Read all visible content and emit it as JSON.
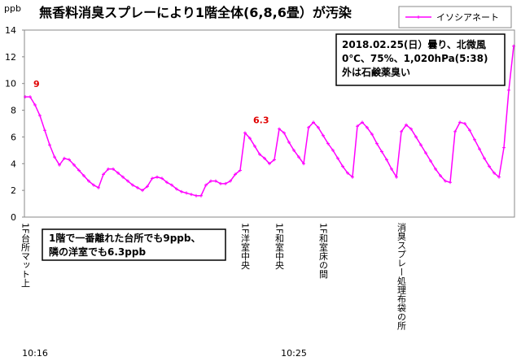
{
  "chart_data": {
    "type": "line",
    "title": "無香料消臭スプレーにより1階全体(6,8,6畳）が汚染",
    "ylabel": "ppb",
    "ylim": [
      0,
      14
    ],
    "yticks": [
      0,
      2,
      4,
      6,
      8,
      10,
      12,
      14
    ],
    "grid": false,
    "legend": "top-right",
    "categories": [
      "1F台所マット上",
      null,
      null,
      null,
      null,
      null,
      null,
      null,
      null,
      null,
      null,
      null,
      null,
      null,
      null,
      null,
      null,
      null,
      null,
      null,
      null,
      null,
      null,
      null,
      null,
      null,
      null,
      null,
      null,
      null,
      null,
      null,
      null,
      null,
      null,
      null,
      null,
      null,
      null,
      null,
      null,
      null,
      null,
      null,
      null,
      "1F洋室中央",
      null,
      null,
      null,
      null,
      null,
      null,
      "1F和室中央",
      null,
      null,
      null,
      null,
      null,
      null,
      null,
      null,
      "1F和室床の間",
      null,
      null,
      null,
      null,
      null,
      null,
      null,
      null,
      null,
      null,
      null,
      null,
      null,
      null,
      null,
      "消臭スプレー処理布袋の所",
      null,
      null,
      null,
      null,
      null,
      null,
      null,
      null,
      null,
      null,
      null,
      null,
      null,
      null,
      null,
      null,
      null,
      null,
      null,
      null,
      null,
      null,
      null
    ],
    "time_labels": [
      null,
      null,
      "10:16",
      null,
      null,
      null,
      null,
      null,
      null,
      null,
      null,
      null,
      null,
      null,
      null,
      null,
      null,
      null,
      null,
      null,
      null,
      null,
      null,
      null,
      null,
      null,
      null,
      null,
      null,
      null,
      null,
      null,
      null,
      null,
      null,
      null,
      null,
      null,
      null,
      null,
      null,
      null,
      null,
      null,
      null,
      null,
      null,
      null,
      null,
      null,
      null,
      null,
      null,
      null,
      null,
      "10:25",
      null,
      null,
      null,
      null,
      null,
      null,
      null,
      null,
      null,
      null,
      null,
      null,
      null,
      null,
      null,
      null,
      null,
      null,
      null,
      null,
      null,
      null,
      null,
      null,
      null,
      null,
      null,
      null,
      null,
      null,
      null,
      null,
      null,
      null,
      null,
      null,
      null,
      null,
      null,
      null,
      null,
      null,
      null,
      null,
      null
    ],
    "series": [
      {
        "name": "イソシアネート",
        "color": "#ff00ff",
        "values": [
          9.0,
          9.0,
          8.4,
          7.6,
          6.5,
          5.4,
          4.5,
          3.9,
          4.4,
          4.3,
          3.9,
          3.5,
          3.1,
          2.7,
          2.4,
          2.2,
          3.2,
          3.6,
          3.6,
          3.3,
          3.0,
          2.7,
          2.4,
          2.2,
          2.0,
          2.3,
          2.9,
          3.0,
          2.9,
          2.6,
          2.4,
          2.1,
          1.9,
          1.8,
          1.7,
          1.6,
          1.6,
          2.4,
          2.7,
          2.7,
          2.5,
          2.5,
          2.7,
          3.2,
          3.5,
          6.3,
          5.9,
          5.3,
          4.7,
          4.4,
          4.0,
          4.3,
          6.6,
          6.3,
          5.6,
          5.0,
          4.5,
          4.0,
          6.7,
          7.1,
          6.7,
          6.1,
          5.5,
          5.0,
          4.4,
          3.8,
          3.3,
          3.0,
          6.8,
          7.1,
          6.7,
          6.2,
          5.5,
          4.9,
          4.3,
          3.6,
          3.0,
          6.4,
          6.9,
          6.6,
          6.0,
          5.4,
          4.8,
          4.2,
          3.6,
          3.1,
          2.7,
          2.6,
          6.4,
          7.1,
          7.0,
          6.5,
          5.8,
          5.1,
          4.4,
          3.8,
          3.3,
          3.0,
          5.2,
          9.5,
          12.8
        ],
        "value_labels": [
          "9",
          null,
          null,
          null,
          null,
          null,
          null,
          null,
          null,
          null,
          null,
          null,
          null,
          null,
          null,
          null,
          null,
          null,
          null,
          null,
          null,
          null,
          null,
          null,
          null,
          null,
          null,
          null,
          null,
          null,
          null,
          null,
          null,
          null,
          null,
          null,
          null,
          null,
          null,
          null,
          null,
          null,
          null,
          null,
          null,
          "6.3",
          null,
          null,
          null,
          null,
          null,
          null,
          null,
          null,
          null,
          null,
          null,
          null,
          null,
          null,
          null,
          null,
          null,
          null,
          null,
          null,
          null,
          null,
          null,
          null,
          null,
          null,
          null,
          null,
          null,
          null,
          null,
          null,
          null,
          null,
          null,
          null,
          null,
          null,
          null,
          null,
          null,
          null,
          null,
          null,
          null,
          null,
          null,
          null,
          null,
          null,
          null,
          null,
          null,
          null,
          null
        ]
      }
    ],
    "annotations": [
      {
        "lines": [
          "2018.02.25(日）曇り、北微風",
          "0℃、75%、1,020hPa(5:38)",
          "外は石鹸薬臭い"
        ]
      },
      {
        "lines": [
          "1階で一番離れた台所でも9ppb、",
          "隣の洋室でも6.3ppb"
        ]
      }
    ]
  }
}
